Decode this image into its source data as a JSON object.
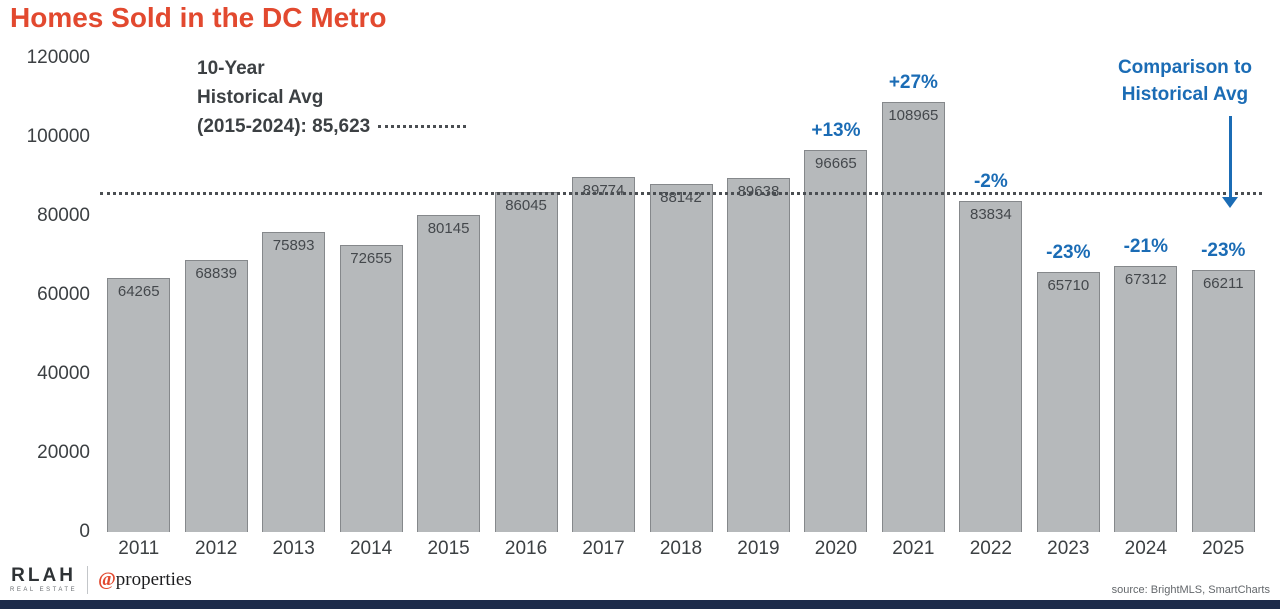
{
  "title": "Homes Sold in the DC Metro",
  "chart_data": {
    "type": "bar",
    "title": "Homes Sold in the DC Metro",
    "categories": [
      "2011",
      "2012",
      "2013",
      "2014",
      "2015",
      "2016",
      "2017",
      "2018",
      "2019",
      "2020",
      "2021",
      "2022",
      "2023",
      "2024",
      "2025"
    ],
    "values": [
      64265,
      68839,
      75893,
      72655,
      80145,
      86045,
      89774,
      88142,
      89638,
      96665,
      108965,
      83834,
      65710,
      67312,
      66211
    ],
    "pct_labels": [
      "",
      "",
      "",
      "",
      "",
      "",
      "",
      "",
      "",
      "+13%",
      "+27%",
      "-2%",
      "-23%",
      "-21%",
      "-23%"
    ],
    "ylim": [
      0,
      120000
    ],
    "yticks": [
      0,
      20000,
      40000,
      60000,
      80000,
      100000,
      120000
    ],
    "grid": "off",
    "legend": "none",
    "avg_line": {
      "value": 85623,
      "label": [
        "10-Year",
        "Historical Avg",
        "(2015-2024): 85,623"
      ]
    },
    "comparison_label": [
      "Comparison to",
      "Historical Avg"
    ]
  },
  "colors": {
    "title": "#e2492f",
    "bar_fill": "#b6b9bb",
    "bar_border": "#85888b",
    "accent_blue": "#1b6cb5",
    "avg_line": "#4a4e52",
    "axis_text": "#3c4043",
    "navy_strip": "#1c2b4a"
  },
  "footer": {
    "logo_rlah": "RLAH",
    "logo_rlah_sub": "REAL ESTATE",
    "logo_at": "@",
    "logo_properties": "properties",
    "source": "source: BrightMLS, SmartCharts"
  }
}
